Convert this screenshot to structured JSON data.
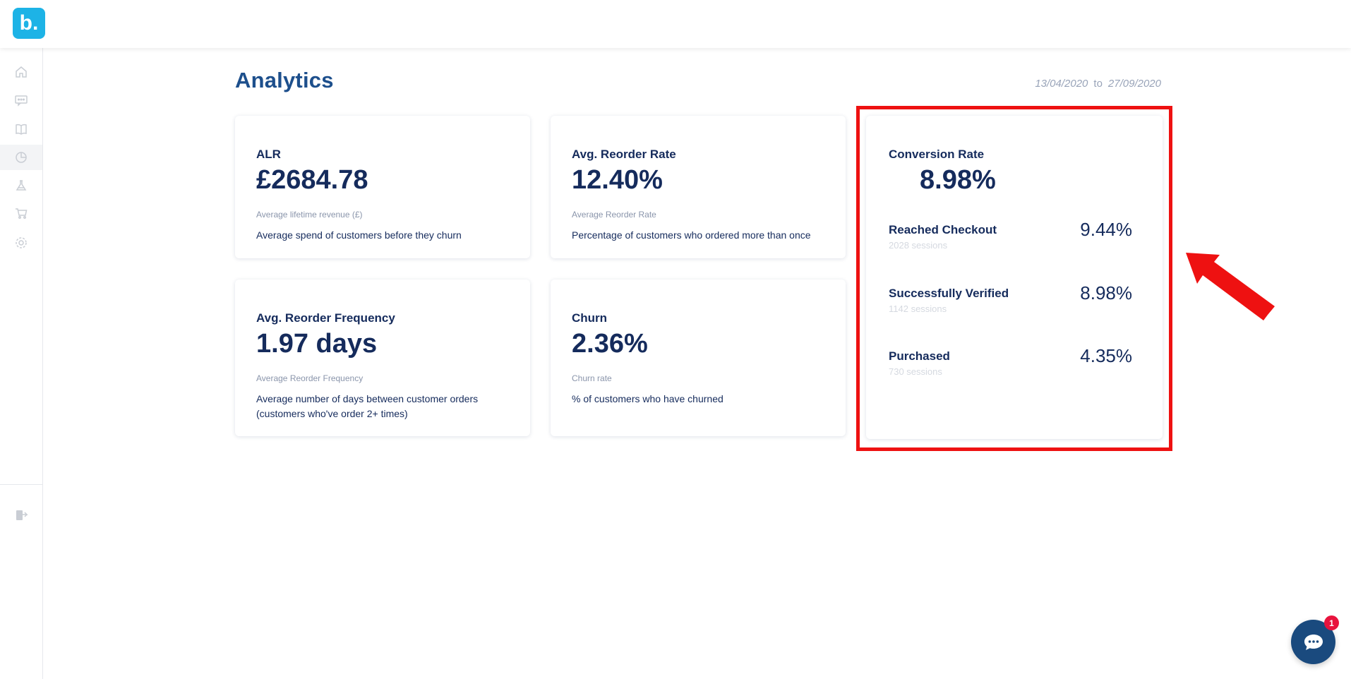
{
  "app": {
    "logo_text": "b.",
    "brand_color": "#1db3e6"
  },
  "sidebar": {
    "items": [
      {
        "icon": "home-icon",
        "active": false
      },
      {
        "icon": "message-icon",
        "active": false
      },
      {
        "icon": "book-icon",
        "active": false
      },
      {
        "icon": "analytics-pie-icon",
        "active": true
      },
      {
        "icon": "flask-icon",
        "active": false
      },
      {
        "icon": "cart-icon",
        "active": false
      },
      {
        "icon": "gear-icon",
        "active": false
      }
    ],
    "footer_icon": "logout-icon"
  },
  "page": {
    "title": "Analytics",
    "date_from": "13/04/2020",
    "date_to_word": "to",
    "date_to": "27/09/2020"
  },
  "cards": {
    "alr": {
      "title": "ALR",
      "value": "£2684.78",
      "subtitle": "Average lifetime revenue (£)",
      "description": "Average spend of customers before they churn"
    },
    "reorder_rate": {
      "title": "Avg. Reorder Rate",
      "value": "12.40%",
      "subtitle": "Average Reorder Rate",
      "description": "Percentage of customers who ordered more than once"
    },
    "reorder_frequency": {
      "title": "Avg. Reorder Frequency",
      "value": "1.97 days",
      "subtitle": "Average Reorder Frequency",
      "description": "Average number of days between customer orders (customers who've order 2+ times)"
    },
    "churn": {
      "title": "Churn",
      "value": "2.36%",
      "subtitle": "Churn rate",
      "description": "% of customers who have churned"
    }
  },
  "conversion": {
    "title": "Conversion Rate",
    "value": "8.98%",
    "rows": [
      {
        "label": "Reached Checkout",
        "sessions": "2028 sessions",
        "percent": "9.44%"
      },
      {
        "label": "Successfully Verified",
        "sessions": "1142 sessions",
        "percent": "8.98%"
      },
      {
        "label": "Purchased",
        "sessions": "730 sessions",
        "percent": "4.35%"
      }
    ]
  },
  "annotation": {
    "highlight_color": "#ee1111"
  },
  "chat": {
    "badge_count": "1",
    "icon": "chat-bubble-icon"
  }
}
